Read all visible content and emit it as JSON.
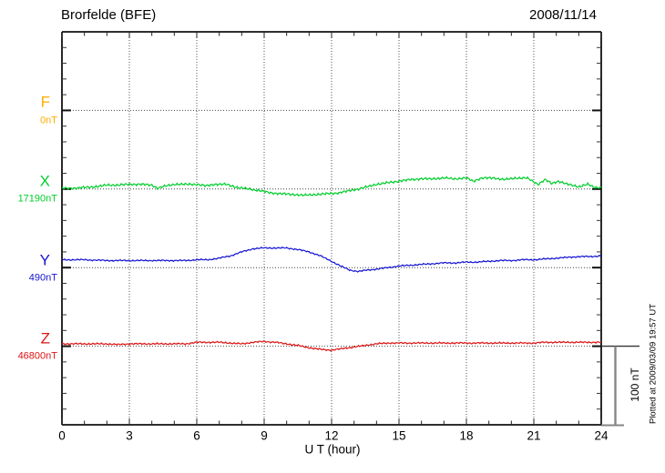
{
  "header": {
    "station": "Brorfelde (BFE)",
    "date": "2008/11/14"
  },
  "axes": {
    "x_label": "U T (hour)",
    "x_ticks": [
      "0",
      "3",
      "6",
      "9",
      "12",
      "15",
      "18",
      "21",
      "24"
    ],
    "x_range_hours": [
      0,
      24
    ]
  },
  "channels": [
    {
      "id": "F",
      "label": "F",
      "value_label": "0nT",
      "color": "#FFAA00"
    },
    {
      "id": "X",
      "label": "X",
      "value_label": "17190nT",
      "color": "#00CE2C"
    },
    {
      "id": "Y",
      "label": "Y",
      "value_label": "490nT",
      "color": "#1414D2"
    },
    {
      "id": "Z",
      "label": "Z",
      "value_label": "46800nT",
      "color": "#DC1414"
    }
  ],
  "scale_bar": {
    "label": "100 nT",
    "span_nT": 100
  },
  "footer": {
    "plotted_at": "Plotted at 2009/03/09 19:57 UT"
  },
  "chart_data": {
    "type": "line",
    "title": "Brorfelde (BFE)",
    "date": "2008/11/14",
    "xlabel": "U T (hour)",
    "x_range_hours": [
      0,
      24
    ],
    "x_tick_step_hours": 3,
    "grid": "dotted",
    "baseline_separation_nT": 100,
    "y_unit": "nT",
    "series": [
      {
        "name": "F",
        "baseline_nT": 0,
        "points": []
      },
      {
        "name": "X",
        "baseline_nT": 17190,
        "points": [
          [
            0,
            1
          ],
          [
            0.5,
            1
          ],
          [
            1,
            2
          ],
          [
            1.5,
            3
          ],
          [
            2,
            5
          ],
          [
            2.5,
            5
          ],
          [
            3,
            6
          ],
          [
            3.5,
            6
          ],
          [
            4,
            5
          ],
          [
            4.25,
            1
          ],
          [
            4.5,
            3
          ],
          [
            5,
            6
          ],
          [
            5.5,
            6
          ],
          [
            6,
            6
          ],
          [
            6.4,
            4
          ],
          [
            6.8,
            6
          ],
          [
            7.3,
            6
          ],
          [
            7.8,
            2
          ],
          [
            8.3,
            0
          ],
          [
            8.8,
            -2
          ],
          [
            9.3,
            -5
          ],
          [
            9.8,
            -6
          ],
          [
            10.3,
            -7
          ],
          [
            10.8,
            -8
          ],
          [
            11.3,
            -7
          ],
          [
            11.8,
            -6
          ],
          [
            12.3,
            -5
          ],
          [
            12.8,
            -2
          ],
          [
            13.2,
            0
          ],
          [
            13.6,
            3
          ],
          [
            14,
            6
          ],
          [
            14.5,
            8
          ],
          [
            15,
            10
          ],
          [
            15.5,
            12
          ],
          [
            16,
            13
          ],
          [
            16.5,
            13
          ],
          [
            17,
            14
          ],
          [
            17.5,
            13
          ],
          [
            18,
            14
          ],
          [
            18.3,
            10
          ],
          [
            18.7,
            14
          ],
          [
            19.2,
            14
          ],
          [
            19.7,
            12
          ],
          [
            20.2,
            14
          ],
          [
            20.7,
            14
          ],
          [
            21.2,
            6
          ],
          [
            21.5,
            12
          ],
          [
            21.8,
            7
          ],
          [
            22.1,
            10
          ],
          [
            22.5,
            6
          ],
          [
            23,
            3
          ],
          [
            23.4,
            6
          ],
          [
            23.7,
            2
          ],
          [
            24,
            2
          ]
        ]
      },
      {
        "name": "Y",
        "baseline_nT": 490,
        "points": [
          [
            0,
            10
          ],
          [
            1,
            10
          ],
          [
            2,
            9
          ],
          [
            3,
            9
          ],
          [
            4,
            9
          ],
          [
            5,
            9
          ],
          [
            5.5,
            9
          ],
          [
            6,
            10
          ],
          [
            6.5,
            10
          ],
          [
            7,
            12
          ],
          [
            7.5,
            15
          ],
          [
            8,
            20
          ],
          [
            8.5,
            24
          ],
          [
            9,
            25
          ],
          [
            9.5,
            25
          ],
          [
            10,
            25
          ],
          [
            10.5,
            23
          ],
          [
            11,
            20
          ],
          [
            11.5,
            15
          ],
          [
            12,
            8
          ],
          [
            12.4,
            2
          ],
          [
            12.8,
            -3
          ],
          [
            13.2,
            -5
          ],
          [
            13.6,
            -3
          ],
          [
            14,
            -2
          ],
          [
            14.5,
            0
          ],
          [
            15,
            2
          ],
          [
            15.5,
            3
          ],
          [
            16,
            4
          ],
          [
            16.5,
            5
          ],
          [
            17,
            6
          ],
          [
            17.5,
            6
          ],
          [
            18,
            7
          ],
          [
            18.5,
            7
          ],
          [
            19,
            8
          ],
          [
            19.5,
            9
          ],
          [
            20,
            9
          ],
          [
            20.5,
            10
          ],
          [
            21,
            10
          ],
          [
            21.5,
            11
          ],
          [
            22,
            12
          ],
          [
            22.5,
            13
          ],
          [
            23,
            14
          ],
          [
            23.5,
            14
          ],
          [
            24,
            15
          ]
        ]
      },
      {
        "name": "Z",
        "baseline_nT": 46800,
        "points": [
          [
            0,
            3
          ],
          [
            0.5,
            3
          ],
          [
            1,
            3
          ],
          [
            1.5,
            3
          ],
          [
            2,
            3
          ],
          [
            2.5,
            2
          ],
          [
            3,
            3
          ],
          [
            3.5,
            3
          ],
          [
            4,
            3
          ],
          [
            4.5,
            3
          ],
          [
            5,
            3
          ],
          [
            5.5,
            3
          ],
          [
            6,
            5
          ],
          [
            6.5,
            5
          ],
          [
            7,
            5
          ],
          [
            7.5,
            4
          ],
          [
            8,
            3
          ],
          [
            8.5,
            5
          ],
          [
            9,
            6
          ],
          [
            9.5,
            5
          ],
          [
            10,
            3
          ],
          [
            10.5,
            1
          ],
          [
            11,
            -2
          ],
          [
            11.5,
            -4
          ],
          [
            12,
            -5
          ],
          [
            12.5,
            -3
          ],
          [
            13,
            -1
          ],
          [
            13.5,
            1
          ],
          [
            14,
            3
          ],
          [
            14.5,
            4
          ],
          [
            15,
            4
          ],
          [
            16,
            4
          ],
          [
            17,
            4
          ],
          [
            18,
            4
          ],
          [
            19,
            4
          ],
          [
            20,
            4
          ],
          [
            21,
            4
          ],
          [
            21.5,
            5
          ],
          [
            22,
            5
          ],
          [
            22.5,
            5
          ],
          [
            23,
            5
          ],
          [
            23.5,
            5
          ],
          [
            24,
            5
          ]
        ]
      }
    ]
  }
}
